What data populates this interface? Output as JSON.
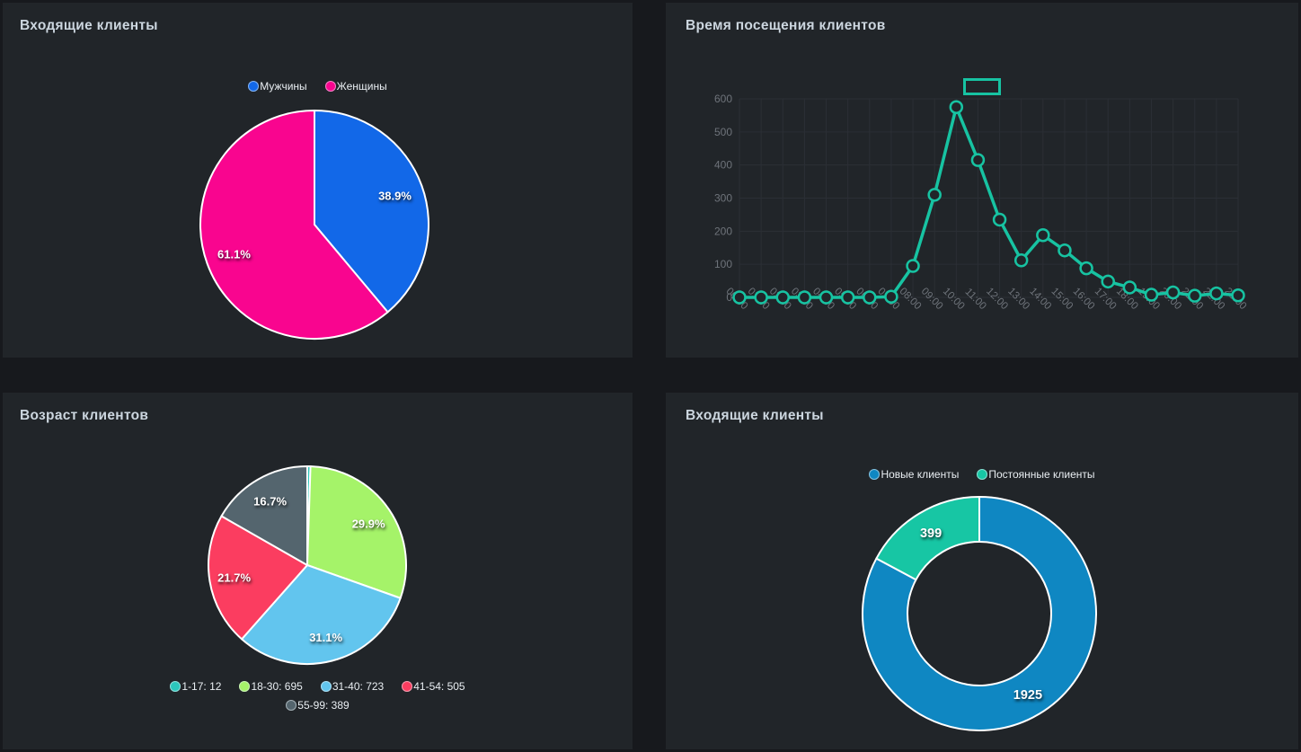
{
  "page": {
    "background": "#17191d",
    "panel_background": "#212529",
    "title_color": "#ccd6df",
    "grid_color": "#2b2f35",
    "axis_label_color": "#6e737a"
  },
  "panels": {
    "gender": {
      "title": "Входящие клиенты"
    },
    "visits": {
      "title": "Время посещения клиентов"
    },
    "age": {
      "title": "Возраст клиентов"
    },
    "clients": {
      "title": "Входящие клиенты"
    }
  },
  "chart_data": [
    {
      "id": "gender",
      "type": "pie",
      "title": "Входящие клиенты",
      "categories": [
        "Мужчины",
        "Женщины"
      ],
      "values": [
        38.9,
        61.1
      ],
      "unit": "percent",
      "data_labels": [
        "38.9%",
        "61.1%"
      ],
      "colors": [
        "#1268e8",
        "#f9058f"
      ],
      "slice_border_color": "#ffffff",
      "legend": {
        "position": "top",
        "entries": [
          {
            "label": "Мужчины",
            "color": "#1268e8"
          },
          {
            "label": "Женщины",
            "color": "#f9058f"
          }
        ]
      }
    },
    {
      "id": "visits",
      "type": "line",
      "title": "Время посещения клиентов",
      "x": [
        "00:00",
        "01:00",
        "02:00",
        "03:00",
        "04:00",
        "05:00",
        "06:00",
        "07:00",
        "08:00",
        "09:00",
        "10:00",
        "11:00",
        "12:00",
        "13:00",
        "14:00",
        "15:00",
        "16:00",
        "17:00",
        "18:00",
        "19:00",
        "20:00",
        "21:00",
        "22:00",
        "23:00"
      ],
      "values": [
        0,
        0,
        0,
        0,
        0,
        0,
        0,
        2,
        95,
        310,
        575,
        415,
        235,
        112,
        188,
        142,
        88,
        48,
        30,
        8,
        15,
        5,
        12,
        6
      ],
      "ylim": [
        0,
        600
      ],
      "yticks": [
        0,
        100,
        200,
        300,
        400,
        500,
        600
      ],
      "line_color": "#17c3a2",
      "marker": "empty-circle",
      "grid": true,
      "legend": {
        "position": "top-center",
        "marker_only": true,
        "label": ""
      }
    },
    {
      "id": "age",
      "type": "pie",
      "title": "Возраст клиентов",
      "categories": [
        "1-17",
        "18-30",
        "31-40",
        "41-54",
        "55-99"
      ],
      "values": [
        12,
        695,
        723,
        505,
        389
      ],
      "data_labels": [
        null,
        "29.9%",
        "31.1%",
        "21.7%",
        "16.7%"
      ],
      "colors": [
        "#2cc8bd",
        "#a5f369",
        "#62c5ee",
        "#fb3d60",
        "#54656e"
      ],
      "slice_border_color": "#ffffff",
      "legend": {
        "position": "bottom",
        "entries": [
          {
            "label": "1-17: 12",
            "color": "#2cc8bd"
          },
          {
            "label": "18-30: 695",
            "color": "#a5f369"
          },
          {
            "label": "31-40: 723",
            "color": "#62c5ee"
          },
          {
            "label": "41-54: 505",
            "color": "#fb3d60"
          },
          {
            "label": "55-99: 389",
            "color": "#54656e"
          }
        ]
      }
    },
    {
      "id": "clients",
      "type": "donut",
      "title": "Входящие клиенты",
      "categories": [
        "Новые клиенты",
        "Постоянные клиенты"
      ],
      "values": [
        1925,
        399
      ],
      "data_labels": [
        "1925",
        "399"
      ],
      "colors": [
        "#0f87c2",
        "#17c6a4"
      ],
      "slice_border_color": "#ffffff",
      "legend": {
        "position": "top",
        "entries": [
          {
            "label": "Новые клиенты",
            "color": "#0f87c2"
          },
          {
            "label": "Постоянные клиенты",
            "color": "#17c6a4"
          }
        ]
      }
    }
  ]
}
